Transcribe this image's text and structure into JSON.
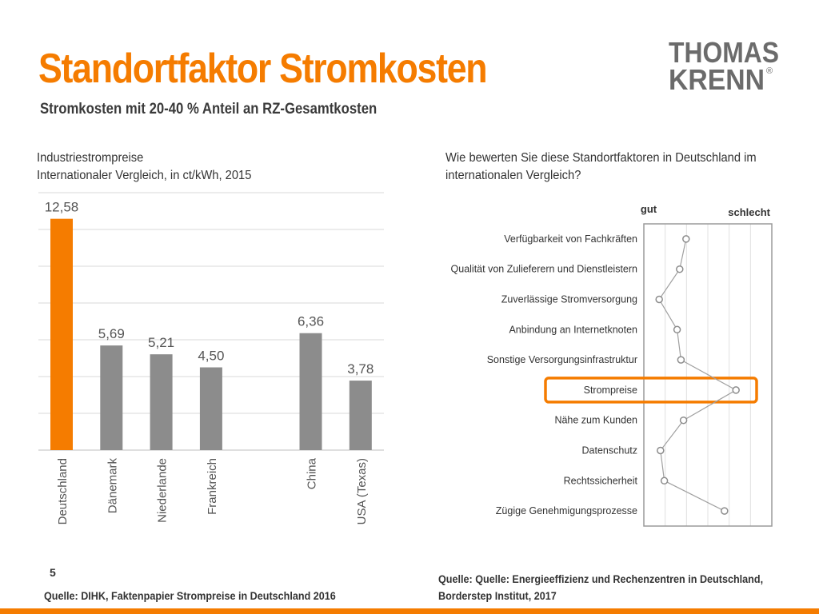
{
  "slide": {
    "title": "Standortfaktor Stromkosten",
    "subtitle": "Stromkosten mit 20-40 % Anteil an RZ-Gesamtkosten",
    "page_number": "5",
    "source_left": "Quelle: DIHK, Faktenpapier Strompreise in Deutschland 2016",
    "source_right_line1": "Quelle: Quelle: Energieeffizienz und Rechenzentren in Deutschland,",
    "source_right_line2": "Borderstep Institut, 2017",
    "accent_color": "#f57c00"
  },
  "logo": {
    "line1": "THOMAS",
    "line2": "KRENN",
    "mark": "®"
  },
  "left_chart_heading": {
    "line1": "Industriestrompreise",
    "line2": "Internationaler Vergleich, in ct/kWh, 2015"
  },
  "right_chart_heading": {
    "line1": "Wie bewerten Sie diese Standortfaktoren in Deutschland im",
    "line2": "internationalen Vergleich?"
  },
  "chart_data": [
    {
      "type": "bar",
      "categories": [
        "Deutschland",
        "Dänemark",
        "Niederlande",
        "Frankreich",
        "China",
        "USA (Texas)"
      ],
      "values": [
        12.58,
        5.69,
        5.21,
        4.5,
        6.36,
        3.78
      ],
      "data_labels": [
        "12,58",
        "5,69",
        "5,21",
        "4,50",
        "6,36",
        "3,78"
      ],
      "bar_colors": [
        "#f57c00",
        "#8c8c8c",
        "#8c8c8c",
        "#8c8c8c",
        "#8c8c8c",
        "#8c8c8c"
      ],
      "ylim": [
        0,
        14
      ],
      "grid": true
    },
    {
      "type": "line",
      "column_labels": [
        "gut",
        "schlecht"
      ],
      "categories": [
        "Verfügbarkeit von Fachkräften",
        "Qualität von Zulieferern und Dienstleistern",
        "Zuverlässige Stromversorgung",
        "Anbindung an Internetknoten",
        "Sonstige Versorgungsinfrastruktur",
        "Strompreise",
        "Nähe zum Kunden",
        "Datenschutz",
        "Rechtssicherheit",
        "Zügige Genehmigungsprozesse"
      ],
      "values": [
        0.33,
        0.28,
        0.12,
        0.26,
        0.29,
        0.72,
        0.31,
        0.13,
        0.16,
        0.63
      ],
      "xlim": [
        0,
        1
      ],
      "highlighted": "Strompreise",
      "grid": true
    }
  ]
}
